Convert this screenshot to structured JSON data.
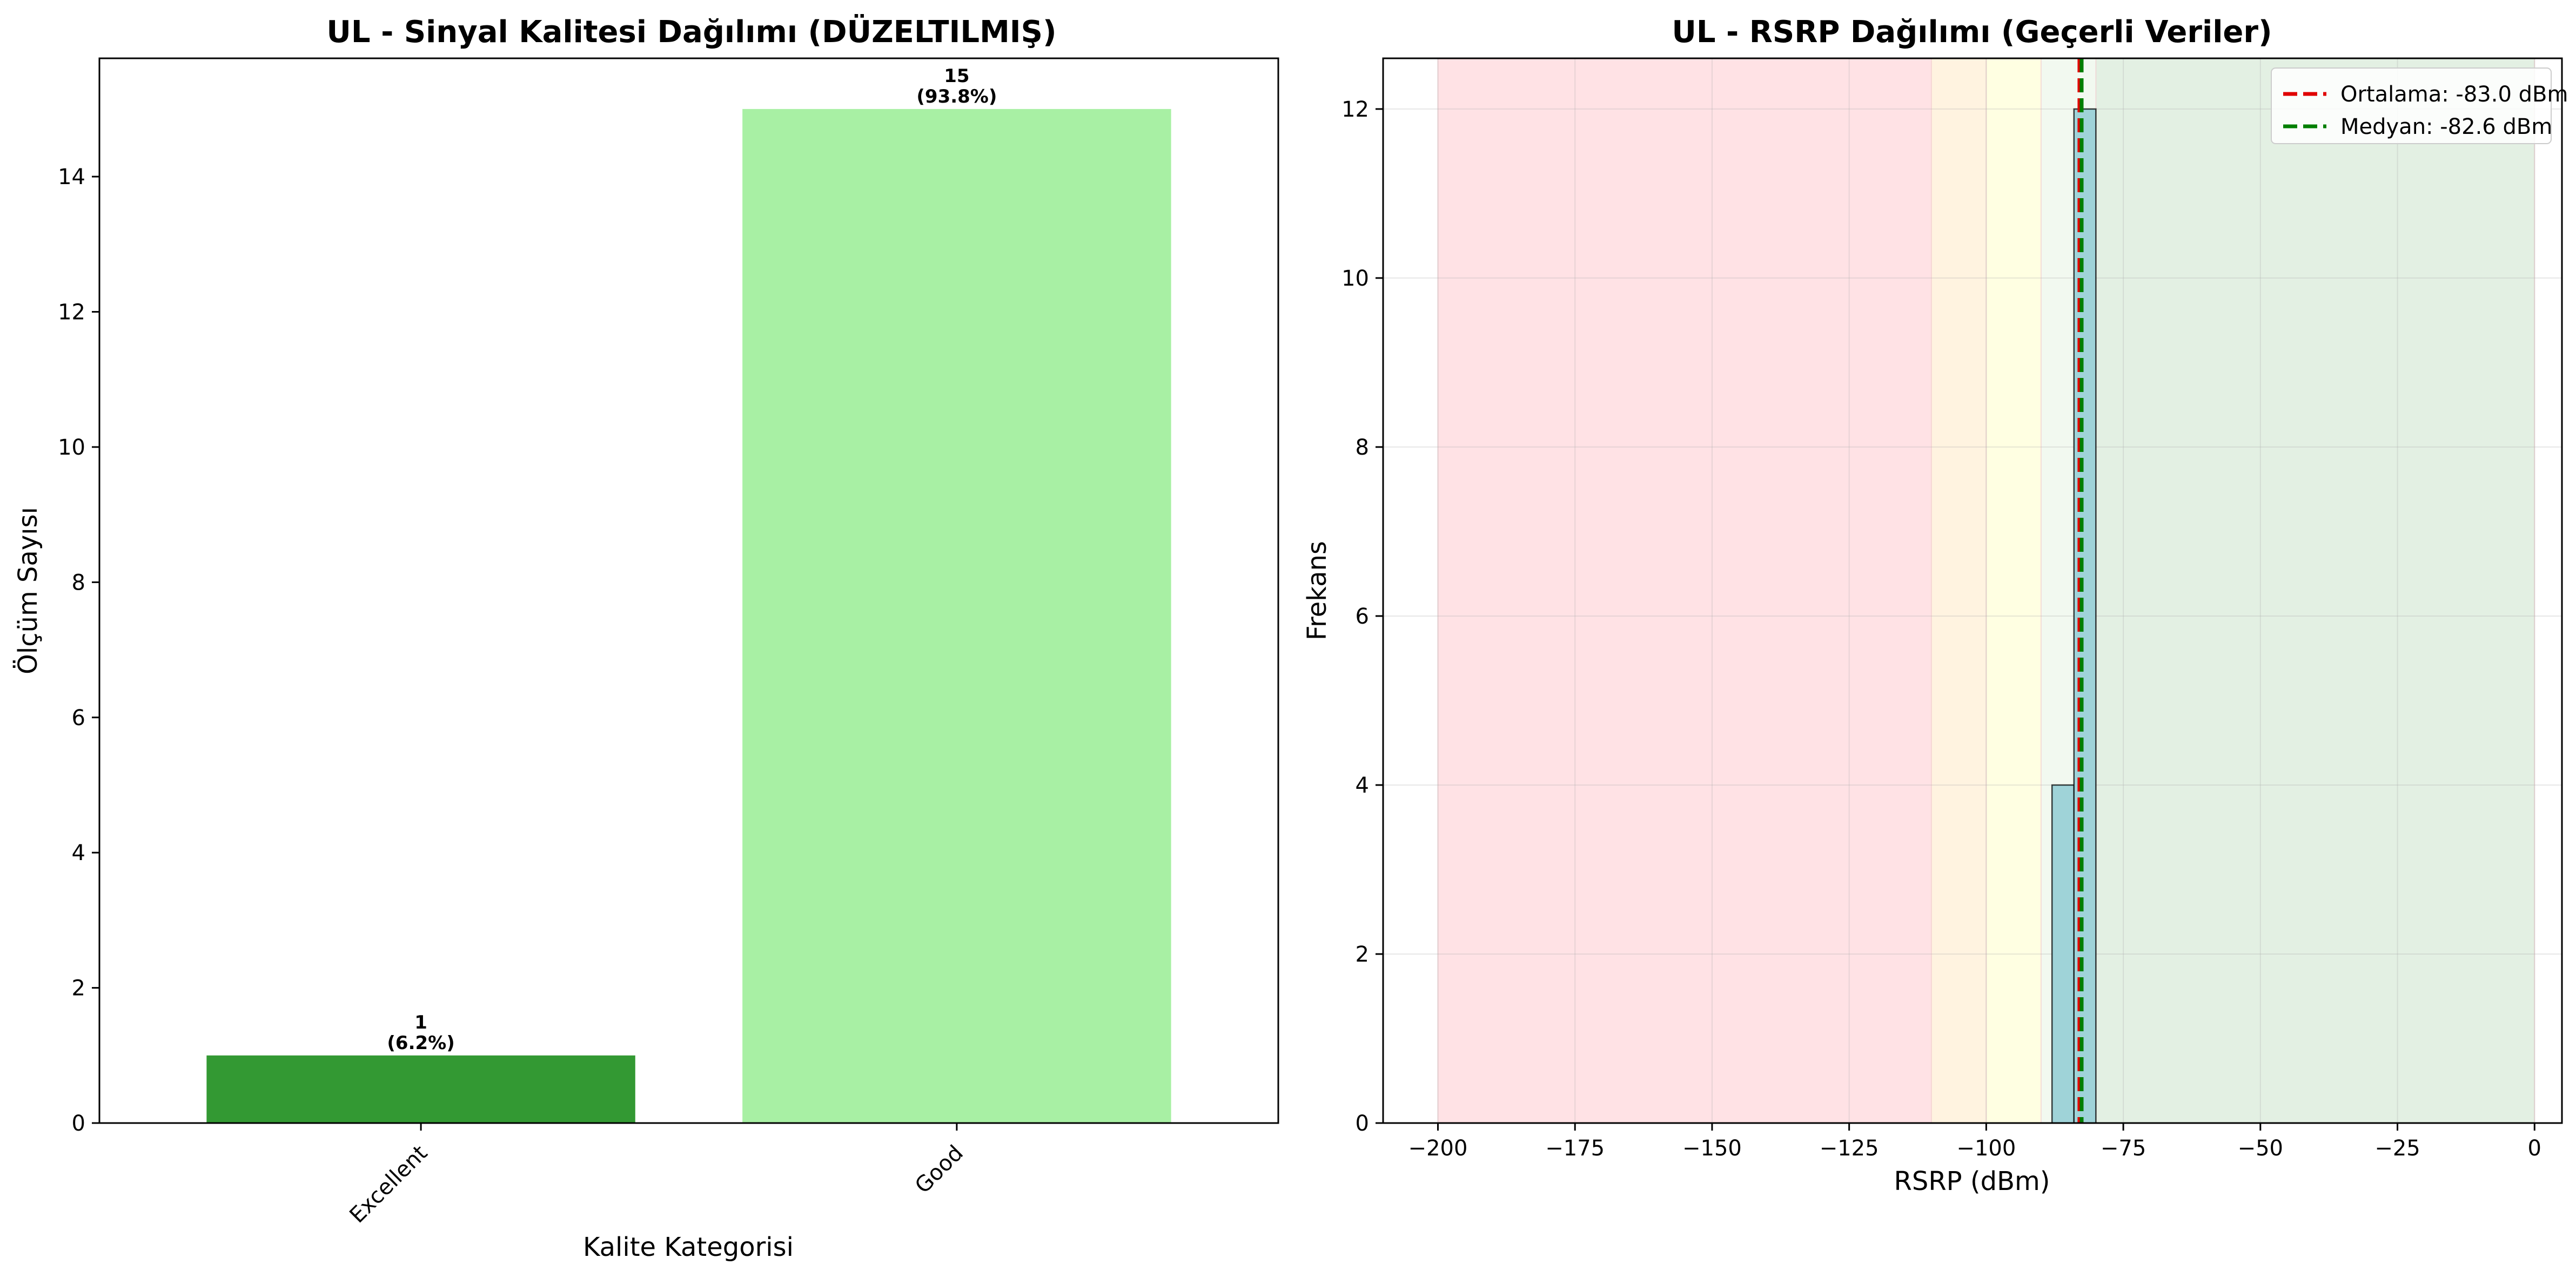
{
  "chart_data": [
    {
      "type": "bar",
      "title": "UL - Sinyal Kalitesi Dağılımı (DÜZELTILMIŞ)",
      "xlabel": "Kalite Kategorisi",
      "ylabel": "Ölçüm Sayısı",
      "categories": [
        "Excellent",
        "Good"
      ],
      "values": [
        1,
        15
      ],
      "data_labels": [
        [
          "1",
          "(6.2%)"
        ],
        [
          "15",
          "(93.8%)"
        ]
      ],
      "colors": [
        "#339933",
        "#a8f0a4"
      ],
      "ylim": [
        0,
        15.75
      ],
      "yticks": [
        0,
        2,
        4,
        6,
        8,
        10,
        12,
        14
      ],
      "grid": false
    },
    {
      "type": "histogram",
      "title": "UL - RSRP Dağılımı (Geçerli Veriler)",
      "xlabel": "RSRP (dBm)",
      "ylabel": "Frekans",
      "xlim": [
        -210,
        5
      ],
      "ylim": [
        0,
        12.6
      ],
      "xticks": [
        -200,
        -175,
        -150,
        -125,
        -100,
        -75,
        -50,
        -25,
        0
      ],
      "yticks": [
        0,
        2,
        4,
        6,
        8,
        10,
        12
      ],
      "grid": true,
      "bins": [
        {
          "x0": -88,
          "x1": -84,
          "count": 4
        },
        {
          "x0": -84,
          "x1": -80,
          "count": 12
        }
      ],
      "bar_color": "#9fd3d8",
      "bands": [
        {
          "x0": -200,
          "x1": -110,
          "color": "#ffe2e5"
        },
        {
          "x0": -110,
          "x1": -100,
          "color": "#fff3e0"
        },
        {
          "x0": -100,
          "x1": -90,
          "color": "#ffffe2"
        },
        {
          "x0": -90,
          "x1": -80,
          "color": "#f2f9f0"
        },
        {
          "x0": -80,
          "x1": 0,
          "color": "#e3f0e3"
        }
      ],
      "reference_lines": [
        {
          "x": -83.0,
          "color": "#e00000",
          "label": "Ortalama: -83.0 dBm"
        },
        {
          "x": -82.6,
          "color": "#007f00",
          "label": "Medyan: -82.6 dBm"
        }
      ],
      "legend_position": "top-right"
    }
  ]
}
